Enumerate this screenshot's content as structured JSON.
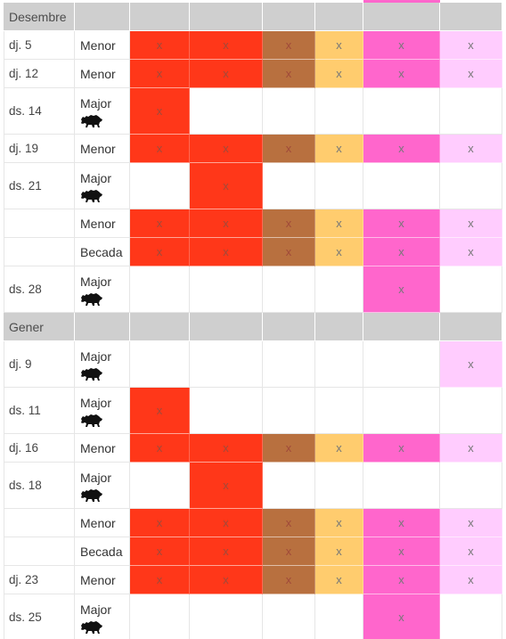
{
  "colors": {
    "header_bg": "#cfcfcf",
    "red": "#ff3719",
    "brown": "#b8703f",
    "yellow": "#ffcc6e",
    "magenta": "#ff66cc",
    "lightpink": "#ffccfe",
    "mark_dark": "#a04a3a",
    "mark_gray": "#777777"
  },
  "column_colors": [
    "red",
    "red",
    "brown",
    "yellow",
    "magenta",
    "lightpink"
  ],
  "mark_glyph": "x",
  "rows": [
    {
      "kind": "header",
      "label": "Desembre"
    },
    {
      "kind": "data",
      "date": "dj. 5",
      "type": "Menor",
      "marks": [
        1,
        1,
        1,
        1,
        1,
        1
      ]
    },
    {
      "kind": "data",
      "date": "dj. 12",
      "type": "Menor",
      "marks": [
        1,
        1,
        1,
        1,
        1,
        1
      ]
    },
    {
      "kind": "data",
      "date": "ds. 14",
      "type": "Major",
      "icon": "boar-icon",
      "marks": [
        1,
        0,
        0,
        0,
        0,
        0
      ]
    },
    {
      "kind": "data",
      "date": "dj. 19",
      "type": "Menor",
      "marks": [
        1,
        1,
        1,
        1,
        1,
        1
      ]
    },
    {
      "kind": "data",
      "date": "ds. 21",
      "type": "Major",
      "icon": "boar-icon",
      "marks": [
        0,
        1,
        0,
        0,
        0,
        0
      ]
    },
    {
      "kind": "data",
      "date": "",
      "type": "Menor",
      "marks": [
        1,
        1,
        1,
        1,
        1,
        1
      ]
    },
    {
      "kind": "data",
      "date": "",
      "type": "Becada",
      "marks": [
        1,
        1,
        1,
        1,
        1,
        1
      ]
    },
    {
      "kind": "data",
      "date": "ds. 28",
      "type": "Major",
      "icon": "boar-icon",
      "marks": [
        0,
        0,
        0,
        0,
        1,
        0
      ]
    },
    {
      "kind": "header",
      "label": "Gener"
    },
    {
      "kind": "data",
      "date": "dj. 9",
      "type": "Major",
      "icon": "boar-icon",
      "marks": [
        0,
        0,
        0,
        0,
        0,
        1
      ]
    },
    {
      "kind": "data",
      "date": "ds. 11",
      "type": "Major",
      "icon": "boar-icon",
      "marks": [
        1,
        0,
        0,
        0,
        0,
        0
      ]
    },
    {
      "kind": "data",
      "date": "dj. 16",
      "type": "Menor",
      "marks": [
        1,
        1,
        1,
        1,
        1,
        1
      ]
    },
    {
      "kind": "data",
      "date": "ds. 18",
      "type": "Major",
      "icon": "boar-icon",
      "marks": [
        0,
        1,
        0,
        0,
        0,
        0
      ]
    },
    {
      "kind": "data",
      "date": "",
      "type": "Menor",
      "marks": [
        1,
        1,
        1,
        1,
        1,
        1
      ]
    },
    {
      "kind": "data",
      "date": "",
      "type": "Becada",
      "marks": [
        1,
        1,
        1,
        1,
        1,
        1
      ]
    },
    {
      "kind": "data",
      "date": "dj. 23",
      "type": "Menor",
      "marks": [
        1,
        1,
        1,
        1,
        1,
        1
      ]
    },
    {
      "kind": "data",
      "date": "ds. 25",
      "type": "Major",
      "icon": "boar-icon",
      "marks": [
        0,
        0,
        0,
        0,
        1,
        0
      ]
    }
  ]
}
